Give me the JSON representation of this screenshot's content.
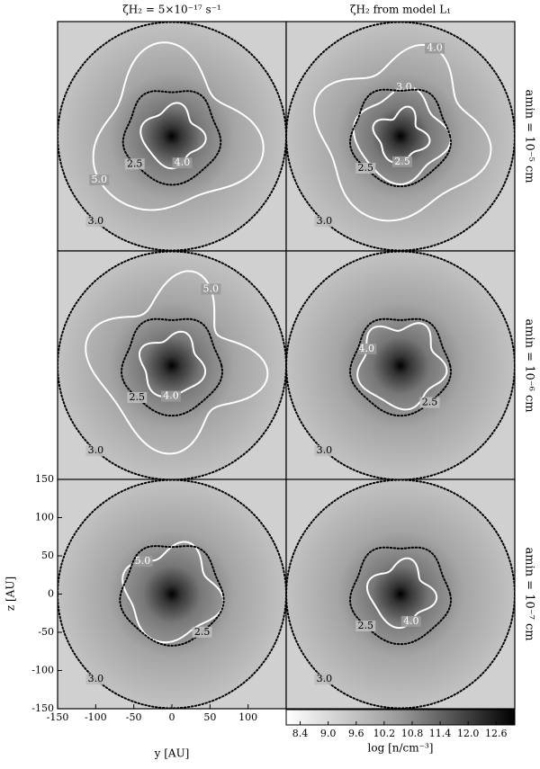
{
  "chart_data": {
    "type": "contour-map",
    "column_titles": [
      "ζH₂ = 5×10⁻¹⁷ s⁻¹",
      "ζH₂ from model L₁"
    ],
    "row_labels": [
      "amin = 10⁻⁵ cm",
      "amin = 10⁻⁶ cm",
      "amin = 10⁻⁷ cm"
    ],
    "x_label": "y [AU]",
    "y_label": "z [AU]",
    "xlim": [
      -150,
      150
    ],
    "ylim": [
      -150,
      150
    ],
    "xticks": [
      -150,
      -100,
      -50,
      0,
      50,
      100
    ],
    "yticks": [
      150,
      100,
      50,
      0,
      -50,
      -100,
      -150
    ],
    "colorbar": {
      "label": "log [n/cm⁻³]",
      "lim": [
        8.1,
        13.0
      ],
      "ticks": [
        8.4,
        {
          "value": 9,
          "label": "9.0"
        },
        9.6,
        10.2,
        10.8,
        11.4,
        {
          "value": 12,
          "label": "12.0"
        },
        12.6
      ]
    },
    "panels": [
      {
        "contours": [
          {
            "level": 3,
            "label": "3.0",
            "style": "dotted"
          },
          {
            "level": 5,
            "label": "5.0",
            "style": "solid"
          },
          {
            "level": 2.5,
            "label": "2.5",
            "style": "dotted"
          },
          {
            "level": 4,
            "label": "4.0",
            "style": "solid"
          }
        ]
      },
      {
        "contours": [
          {
            "level": 3,
            "label": "3.0",
            "style": "dotted"
          },
          {
            "level": 4,
            "label": "4.0",
            "style": "solid"
          },
          {
            "level": 3,
            "label": "3.0",
            "style": "solid"
          },
          {
            "level": 2.5,
            "label": "2.5",
            "style": "dotted"
          },
          {
            "level": 2.5,
            "label": "2.5",
            "style": "solid"
          }
        ]
      },
      {
        "contours": [
          {
            "level": 3,
            "label": "3.0",
            "style": "dotted"
          },
          {
            "level": 5,
            "label": "5.0",
            "style": "solid"
          },
          {
            "level": 2.5,
            "label": "2.5",
            "style": "dotted"
          },
          {
            "level": 4,
            "label": "4.0",
            "style": "solid"
          }
        ]
      },
      {
        "contours": [
          {
            "level": 3,
            "label": "3.0",
            "style": "dotted"
          },
          {
            "level": 4,
            "label": "4.0",
            "style": "solid"
          },
          {
            "level": 2.5,
            "label": "2.5",
            "style": "dotted"
          }
        ]
      },
      {
        "contours": [
          {
            "level": 3,
            "label": "3.0",
            "style": "dotted"
          },
          {
            "level": 5,
            "label": "5.0",
            "style": "solid"
          },
          {
            "level": 2.5,
            "label": "2.5",
            "style": "dotted"
          }
        ]
      },
      {
        "contours": [
          {
            "level": 3,
            "label": "3.0",
            "style": "dotted"
          },
          {
            "level": 2.5,
            "label": "2.5",
            "style": "dotted"
          },
          {
            "level": 4,
            "label": "4.0",
            "style": "solid"
          }
        ]
      }
    ]
  }
}
